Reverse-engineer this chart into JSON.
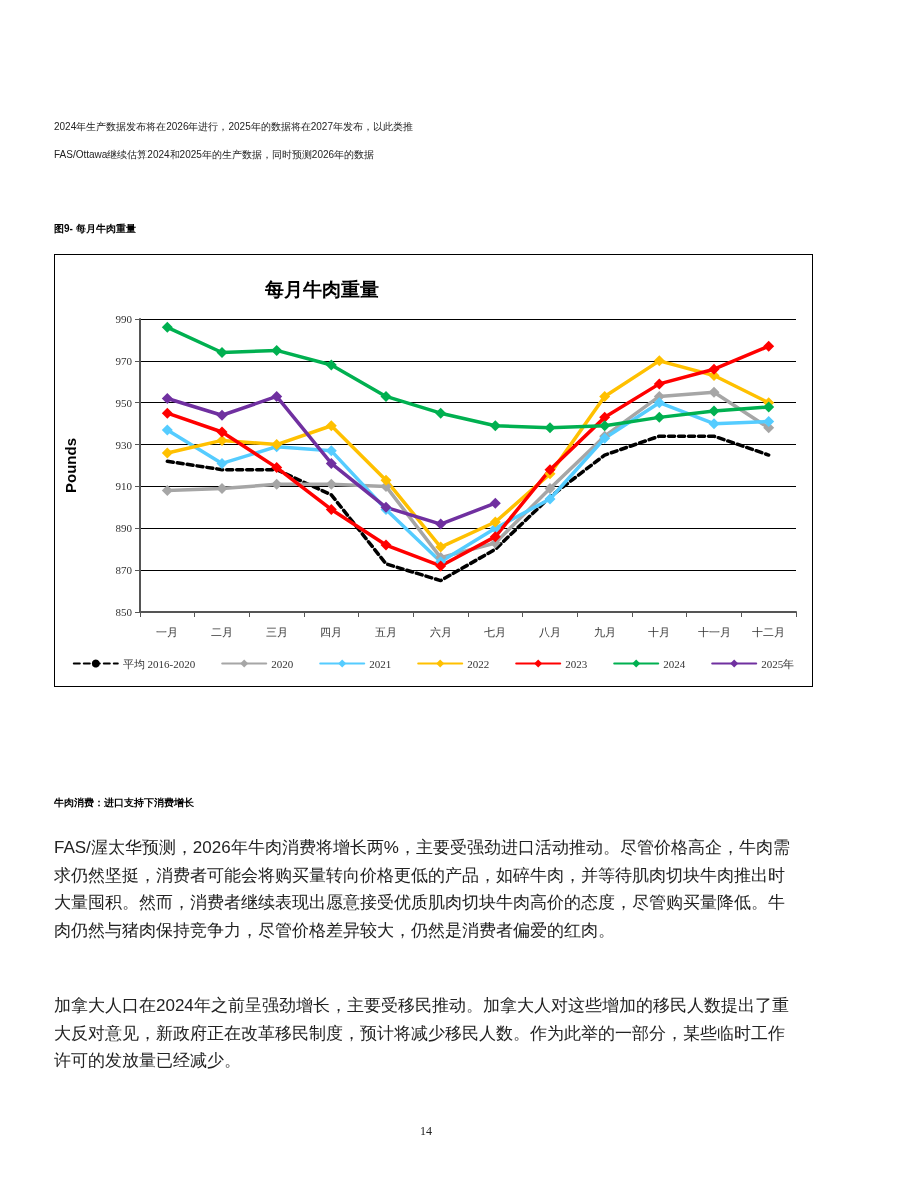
{
  "chart_data": {
    "type": "line",
    "title": "每月牛肉重量",
    "ylabel": "Pounds",
    "annotations": [
      "2024年生产数据发布将在2026年进行，2025年的数据将在2027年发布，以此类推",
      "FAS/Ottawa继续估算2024和2025年的生产数据，同时预测2026年的数据",
      "图9- 每月牛肉重量",
      "牛肉消费：进口支持下消费增长",
      "FAS/渥太华预测，2026年牛肉消费将增长两%，主要受强劲进口活动推动。尽管价格高企，牛肉需求仍然坚挺，消费者可能会将购买量转向价格更低的产品，如碎牛肉，并等待肌肉切块牛肉推出时大量囤积。然而，消费者继续表现出愿意接受优质肌肉切块牛肉高价的态度，尽管购买量降低。牛肉仍然与猪肉保持竞争力，尽管价格差异较大，仍然是消费者偏爱的红肉。",
      "加拿大人口在2024年之前呈强劲增长，主要受移民推动。加拿大人对这些增加的移民人数提出了重大反对意见，新政府正在改革移民制度，预计将减少移民人数。作为此举的一部分，某些临时工作许可的发放量已经减少。",
      "14"
    ],
    "categories": [
      "一月",
      "二月",
      "三月",
      "四月",
      "五月",
      "六月",
      "七月",
      "八月",
      "九月",
      "十月",
      "十一月",
      "十二月"
    ],
    "series": [
      {
        "name": "平均 2016-2020",
        "color": "#000000",
        "line_style": "dashed",
        "marker": "none",
        "values": [
          922,
          918,
          918,
          906,
          873,
          865,
          880,
          905,
          925,
          934,
          934,
          925
        ]
      },
      {
        "name": "2020",
        "color": "#a6a6a6",
        "values": [
          908,
          909,
          911,
          911,
          910,
          876,
          883,
          909,
          934,
          953,
          955,
          938
        ]
      },
      {
        "name": "2021",
        "color": "#55ccff",
        "values": [
          937,
          921,
          929,
          927,
          899,
          874,
          890,
          904,
          933,
          950,
          940,
          941
        ]
      },
      {
        "name": "2022",
        "color": "#ffc000",
        "values": [
          926,
          932,
          930,
          939,
          913,
          881,
          893,
          916,
          953,
          970,
          963,
          950
        ]
      },
      {
        "name": "2023",
        "color": "#ff0000",
        "values": [
          945,
          936,
          919,
          899,
          882,
          872,
          886,
          918,
          943,
          959,
          966,
          977
        ]
      },
      {
        "name": "2024",
        "color": "#00b050",
        "values": [
          986,
          974,
          975,
          968,
          953,
          945,
          939,
          938,
          939,
          943,
          946,
          948
        ]
      },
      {
        "name": "2025年",
        "color": "#7030a0",
        "values": [
          952,
          944,
          953,
          921,
          900,
          892,
          902,
          null,
          null,
          null,
          null,
          null
        ]
      }
    ],
    "ylim": [
      850,
      990
    ],
    "yticks": [
      850,
      870,
      890,
      910,
      930,
      950,
      970,
      990
    ],
    "grid": "y",
    "legend": "bottom",
    "marker": "diamond",
    "line_style": "solid"
  }
}
